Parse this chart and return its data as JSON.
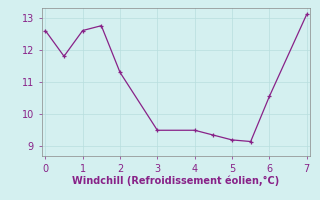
{
  "x": [
    0,
    0.5,
    1,
    1.5,
    2,
    3,
    4,
    4.5,
    5,
    5.5,
    6,
    7
  ],
  "y": [
    12.6,
    11.8,
    12.6,
    12.75,
    11.3,
    9.5,
    9.5,
    9.35,
    9.2,
    9.15,
    10.55,
    13.1
  ],
  "line_color": "#882288",
  "marker": "+",
  "background_color": "#d4f0f0",
  "grid_color": "#b8dede",
  "xlabel": "Windchill (Refroidissement éolien,°C)",
  "xlabel_color": "#882288",
  "tick_color": "#882288",
  "spine_color": "#888888",
  "xlim": [
    -0.1,
    7.1
  ],
  "ylim": [
    8.7,
    13.3
  ],
  "xticks": [
    0,
    1,
    2,
    3,
    4,
    5,
    6,
    7
  ],
  "yticks": [
    9,
    10,
    11,
    12,
    13
  ],
  "axis_fontsize": 7,
  "tick_fontsize": 7,
  "markersize": 3,
  "linewidth": 0.9
}
